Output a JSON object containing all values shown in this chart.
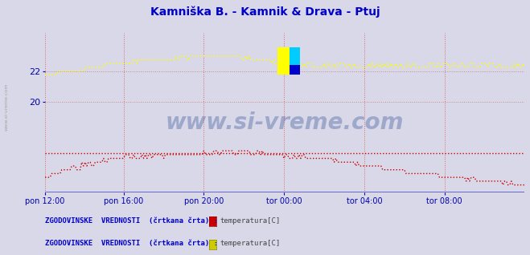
{
  "title": "Kamniška B. - Kamnik & Drava - Ptuj",
  "title_color": "#0000cc",
  "bg_color": "#d8d8e8",
  "plot_bg_color": "#d8d8e8",
  "x_labels": [
    "pon 12:00",
    "pon 16:00",
    "pon 20:00",
    "tor 00:00",
    "tor 04:00",
    "tor 08:00"
  ],
  "x_ticks_norm": [
    0.0,
    0.167,
    0.333,
    0.5,
    0.667,
    0.833
  ],
  "x_max": 287,
  "y_ticks": [
    20,
    22
  ],
  "y_min": 14.0,
  "y_max": 24.5,
  "tick_color": "#0000aa",
  "watermark_text": "www.si-vreme.com",
  "watermark_color": "#1a3a8a",
  "watermark_alpha": 0.3,
  "red_ref_y": 16.6,
  "legend1_label": "ZGODOVINSKE  VREDNOSTI  (črtkana črta) :",
  "legend1_color": "#cc0000",
  "legend1_item": "temperatura[C]",
  "legend2_label": "ZGODOVINSKE  VREDNOSTI  (črtkana črta) :",
  "legend2_color": "#cccc00",
  "legend2_item": "temperatura[C]",
  "sidebar_text": "www.si-vreme.com"
}
